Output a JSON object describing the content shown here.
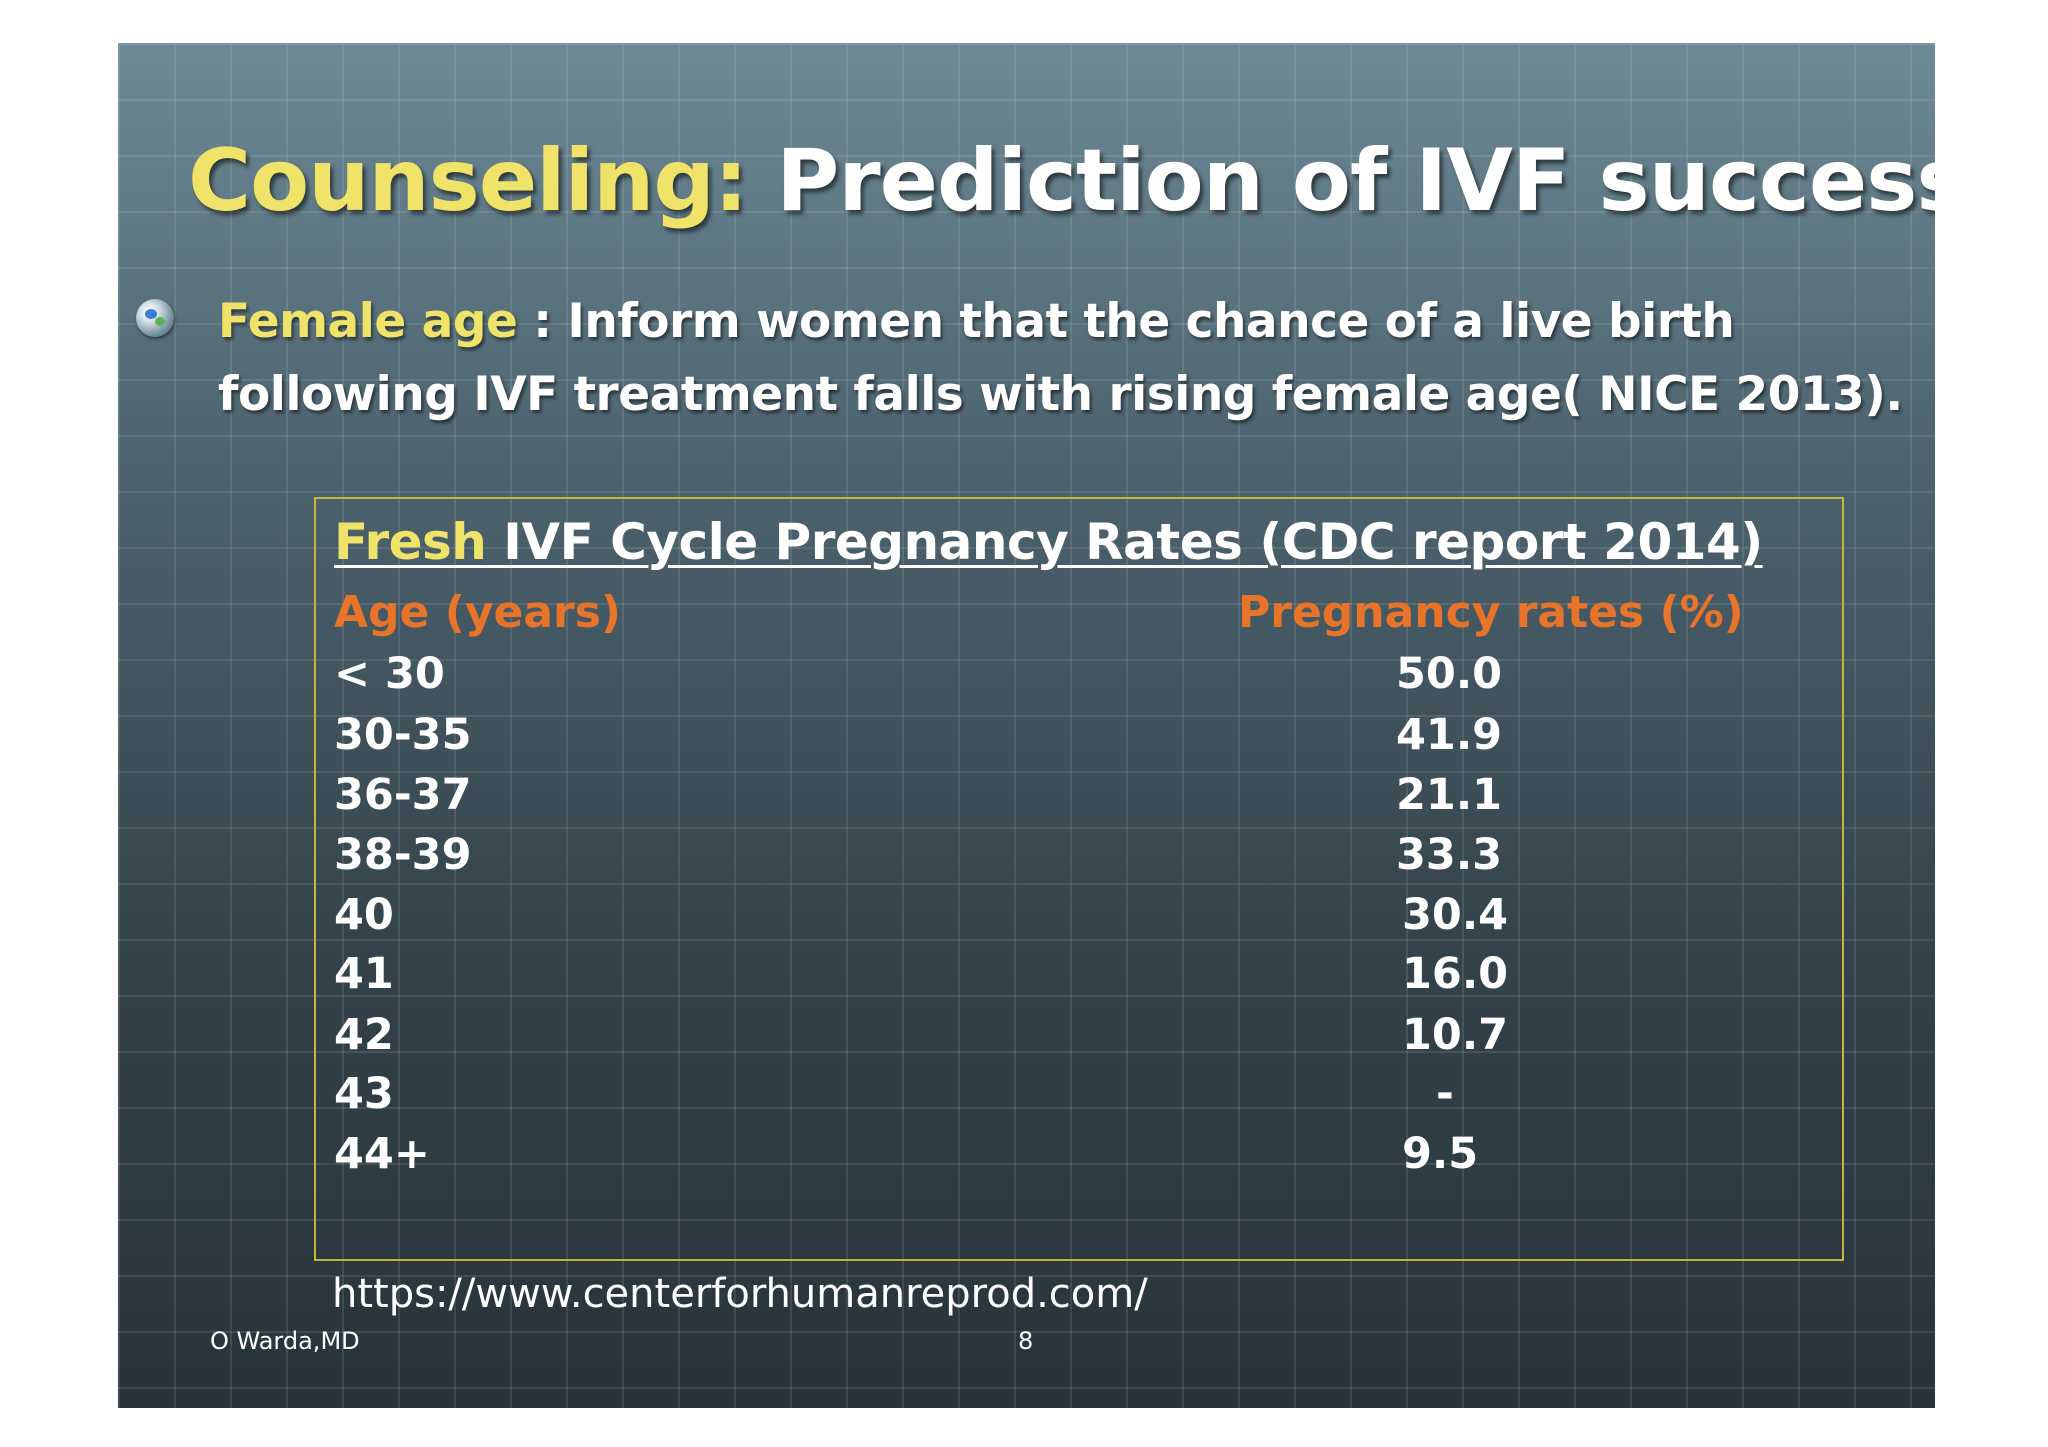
{
  "slide": {
    "title_accent": "Counseling:",
    "title_rest": " Prediction of IVF success",
    "bullet": {
      "icon": "globe-bullet-icon",
      "label": "Female age",
      "text": " : Inform women that the chance of a live birth following IVF treatment falls with rising female age( NICE 2013)."
    },
    "table": {
      "title_accent": "Fresh",
      "title_rest": " IVF Cycle Pregnancy Rates (CDC report 2014)",
      "headers": {
        "age": "Age (years)",
        "rate": "Pregnancy rates (%)"
      },
      "rows": [
        {
          "age": "< 30",
          "rate": "50.0"
        },
        {
          "age": "30-35",
          "rate": "41.9"
        },
        {
          "age": "36-37",
          "rate": "21.1"
        },
        {
          "age": "38-39",
          "rate": "33.3"
        },
        {
          "age": "40",
          "rate": "30.4"
        },
        {
          "age": "41",
          "rate": "16.0"
        },
        {
          "age": "42",
          "rate": "10.7"
        },
        {
          "age": "43",
          "rate": "-"
        },
        {
          "age": "44+",
          "rate": "9.5"
        }
      ]
    },
    "source_url": "https://www.centerforhumanreprod.com/",
    "footer": {
      "author": "O Warda,MD",
      "page_number": "8"
    },
    "colors": {
      "accent_yellow": "#f0e36a",
      "header_orange": "#e8742a",
      "border_gold": "#c8b53a"
    }
  }
}
